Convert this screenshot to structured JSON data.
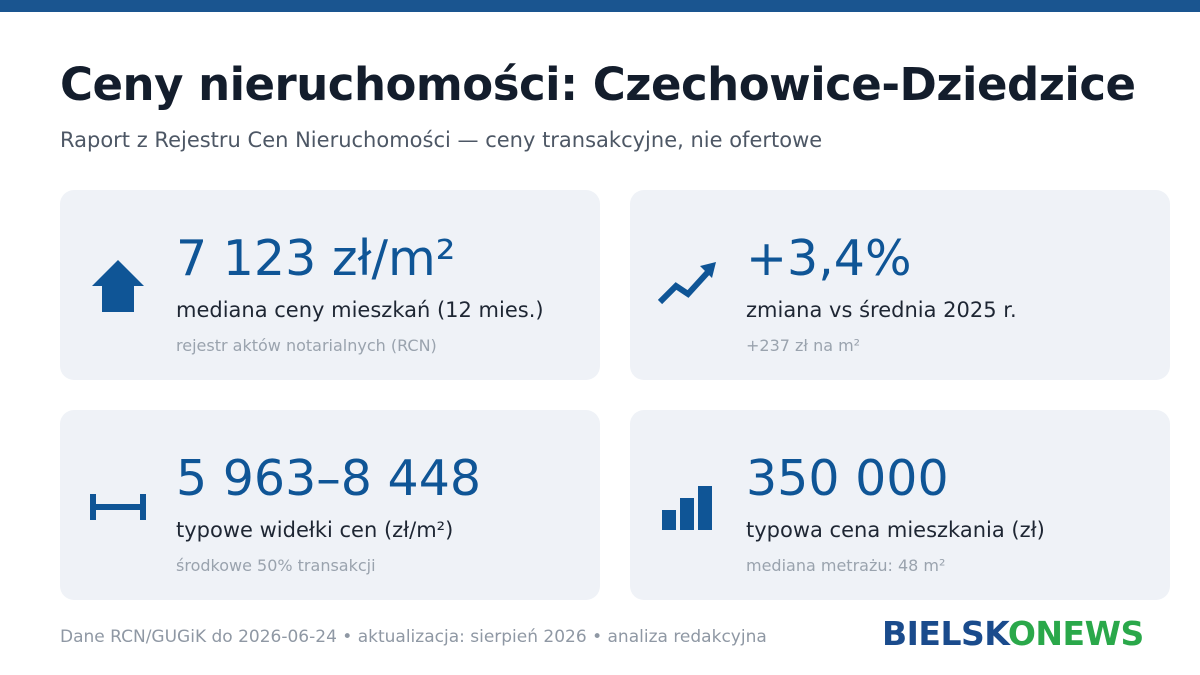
{
  "header": {
    "title": "Ceny nieruchomości: Czechowice-Dziedzice",
    "subtitle": "Raport z Rejestru Cen Nieruchomości — ceny transakcyjne, nie ofertowe"
  },
  "cards": [
    {
      "value": "7 123 zł/m²",
      "label": "mediana ceny mieszkań (12 mies.)",
      "note": "rejestr aktów notarialnych (RCN)"
    },
    {
      "value": "+3,4%",
      "label": "zmiana vs średnia 2025 r.",
      "note": "+237 zł na m²"
    },
    {
      "value": "5 963–8 448",
      "label": "typowe widełki cen (zł/m²)",
      "note": "środkowe 50% transakcji"
    },
    {
      "value": "350 000",
      "label": "typowa cena mieszkania (zł)",
      "note": "mediana metrażu: 48 m²"
    }
  ],
  "footer": {
    "text": "Dane RCN/GUGiK do 2026-06-24 • aktualizacja: sierpień 2026 • analiza redakcyjna",
    "logo": [
      "BIELSK",
      "O",
      "NEWS"
    ]
  }
}
